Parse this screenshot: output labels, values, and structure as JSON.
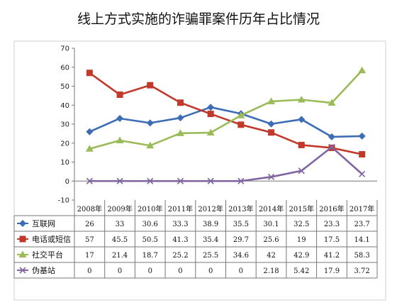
{
  "chart_data": {
    "type": "line",
    "title": "线上方式实施的诈骗罪案件历年占比情况",
    "categories": [
      "2008年",
      "2009年",
      "2010年",
      "2011年",
      "2012年",
      "2013年",
      "2014年",
      "2015年",
      "2016年",
      "2017年"
    ],
    "ylim": [
      -10,
      70
    ],
    "yticks": [
      -10,
      0,
      10,
      20,
      30,
      40,
      50,
      60,
      70
    ],
    "grid": false,
    "legend": "data table below chart",
    "series": [
      {
        "name": "互联网",
        "color": "#3e6db5",
        "marker": "diamond",
        "values": [
          26,
          33,
          30.6,
          33.3,
          38.9,
          35.5,
          30.1,
          32.5,
          23.3,
          23.7
        ],
        "labels": [
          "26",
          "33",
          "30.6",
          "33.3",
          "38.9",
          "35.5",
          "30.1",
          "32.5",
          "23.3",
          "23.7"
        ]
      },
      {
        "name": "电话或短信",
        "color": "#c0392b",
        "marker": "square",
        "values": [
          57,
          45.5,
          50.5,
          41.3,
          35.4,
          29.7,
          25.6,
          19,
          17.5,
          14.1
        ],
        "labels": [
          "57",
          "45.5",
          "50.5",
          "41.3",
          "35.4",
          "29.7",
          "25.6",
          "19",
          "17.5",
          "14.1"
        ]
      },
      {
        "name": "社交平台",
        "color": "#9bbb59",
        "marker": "triangle",
        "values": [
          17,
          21.4,
          18.7,
          25.2,
          25.5,
          34.6,
          42,
          42.9,
          41.2,
          58.3
        ],
        "labels": [
          "17",
          "21.4",
          "18.7",
          "25.2",
          "25.5",
          "34.6",
          "42",
          "42.9",
          "41.2",
          "58.3"
        ]
      },
      {
        "name": "伪基站",
        "color": "#7e64a0",
        "marker": "x",
        "values": [
          0,
          0,
          0,
          0,
          0,
          0,
          2.18,
          5.42,
          17.9,
          3.72
        ],
        "labels": [
          "0",
          "0",
          "0",
          "0",
          "0",
          "0",
          "2.18",
          "5.42",
          "17.9",
          "3.72"
        ]
      }
    ]
  }
}
